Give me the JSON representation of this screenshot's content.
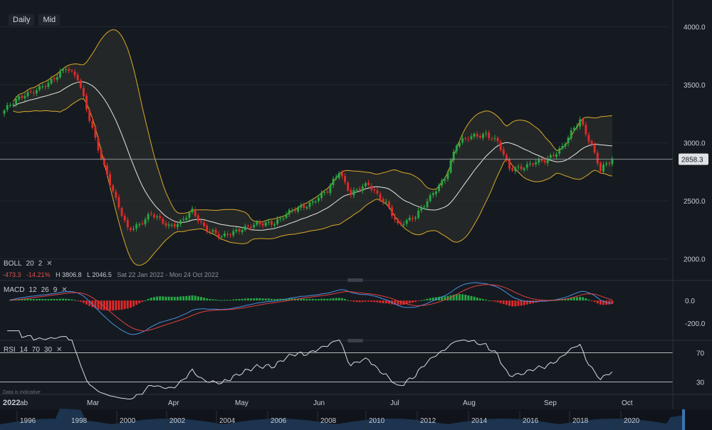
{
  "toolbar": {
    "interval": "Daily",
    "price_type": "Mid"
  },
  "boll": {
    "label": "BOLL",
    "p1": "20",
    "p2": "2"
  },
  "stats": {
    "change": "-473.3",
    "change_pct": "-14.21%",
    "high": "H 3806.8",
    "low": "L 2046.5",
    "range": "Sat 22 Jan 2022 - Mon 24 Oct 2022"
  },
  "macd": {
    "label": "MACD",
    "p1": "12",
    "p2": "26",
    "p3": "9"
  },
  "rsi": {
    "label": "RSI",
    "p1": "14",
    "p2": "70",
    "p3": "30"
  },
  "disclaimer": "Data is indicative",
  "colors": {
    "up": "#27a844",
    "down": "#e02a2a",
    "band": "#d9a928",
    "macd_line": "#4a90e2",
    "signal_line": "#e04040",
    "rsi_line": "#d8dbe0"
  },
  "chart_data": {
    "type": "candlestick",
    "price_axis": {
      "ticks": [
        4000.0,
        3500.0,
        3000.0,
        2500.0,
        2000.0
      ],
      "tick_labels": [
        "4000.0",
        "3500.0",
        "3000.0",
        "2500.0",
        "2000.0"
      ],
      "range": [
        1820,
        4230
      ]
    },
    "last_price": 2858.3,
    "last_price_label": "2858.3",
    "month_labels": [
      "2022",
      "ab",
      "Mar",
      "Apr",
      "May",
      "Jun",
      "Jul",
      "Aug",
      "Sep",
      "Oct"
    ],
    "candle_count": 208,
    "close_anchors": [
      [
        0,
        3280
      ],
      [
        7,
        3420
      ],
      [
        15,
        3500
      ],
      [
        21,
        3660
      ],
      [
        25,
        3550
      ],
      [
        29,
        3200
      ],
      [
        34,
        2800
      ],
      [
        38,
        2500
      ],
      [
        42,
        2260
      ],
      [
        46,
        2300
      ],
      [
        50,
        2380
      ],
      [
        56,
        2290
      ],
      [
        60,
        2310
      ],
      [
        64,
        2410
      ],
      [
        68,
        2280
      ],
      [
        74,
        2180
      ],
      [
        80,
        2260
      ],
      [
        86,
        2290
      ],
      [
        92,
        2320
      ],
      [
        98,
        2410
      ],
      [
        104,
        2480
      ],
      [
        110,
        2580
      ],
      [
        114,
        2760
      ],
      [
        118,
        2560
      ],
      [
        124,
        2640
      ],
      [
        130,
        2480
      ],
      [
        134,
        2280
      ],
      [
        140,
        2380
      ],
      [
        145,
        2520
      ],
      [
        150,
        2700
      ],
      [
        154,
        2990
      ],
      [
        160,
        3060
      ],
      [
        164,
        3080
      ],
      [
        168,
        3000
      ],
      [
        172,
        2780
      ],
      [
        178,
        2800
      ],
      [
        184,
        2850
      ],
      [
        190,
        2960
      ],
      [
        196,
        3200
      ],
      [
        200,
        2980
      ],
      [
        203,
        2760
      ],
      [
        207,
        2858
      ]
    ],
    "bollinger": {
      "period": 20,
      "stddev": 2
    },
    "macd_axis": {
      "ticks": [
        0.0,
        -200.0
      ],
      "tick_labels": [
        "0.0",
        "-200.0"
      ],
      "range": [
        -330,
        150
      ]
    },
    "macd": {
      "fast": 12,
      "slow": 26,
      "signal": 9
    },
    "rsi_axis": {
      "ticks": [
        70,
        30
      ],
      "tick_labels": [
        "70",
        "30"
      ],
      "range": [
        15,
        85
      ]
    },
    "rsi": {
      "period": 14,
      "upper": 70,
      "lower": 30
    },
    "navigator_years": [
      "1996",
      "1998",
      "2000",
      "2002",
      "2004",
      "2006",
      "2008",
      "2010",
      "2012",
      "2014",
      "2016",
      "2018",
      "2020"
    ]
  }
}
